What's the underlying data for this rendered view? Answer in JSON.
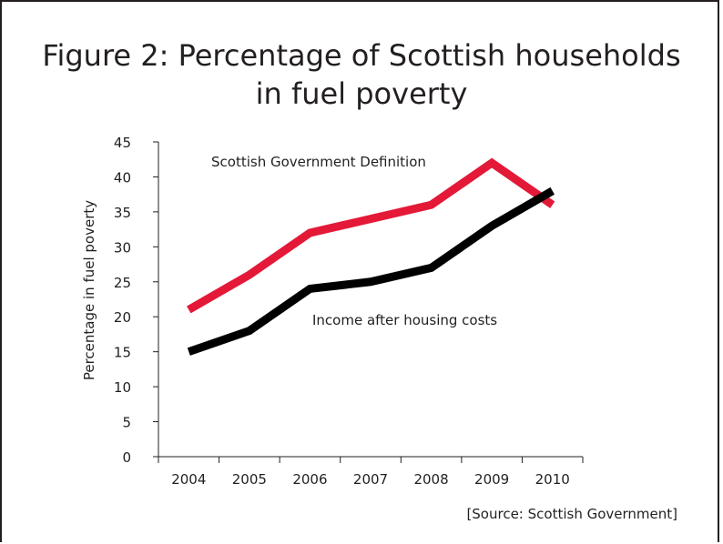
{
  "chart_data": {
    "type": "line",
    "title_line1": "Figure 2: Percentage of Scottish households",
    "title_line2": "in fuel poverty",
    "xlabel": "",
    "ylabel": "Percentage in fuel poverty",
    "categories": [
      "2004",
      "2005",
      "2006",
      "2007",
      "2008",
      "2009",
      "2010"
    ],
    "ylim": [
      0,
      45
    ],
    "yticks": [
      0,
      5,
      10,
      15,
      20,
      25,
      30,
      35,
      40,
      45
    ],
    "grid": false,
    "series": [
      {
        "name": "Scottish Government Definition",
        "color": "#e31937",
        "values": [
          21,
          26,
          32,
          34,
          36,
          42,
          36
        ]
      },
      {
        "name": "Income after housing costs",
        "color": "#000000",
        "values": [
          15,
          18,
          24,
          25,
          27,
          33,
          38
        ]
      }
    ],
    "source": "[Source: Scottish Government]"
  }
}
